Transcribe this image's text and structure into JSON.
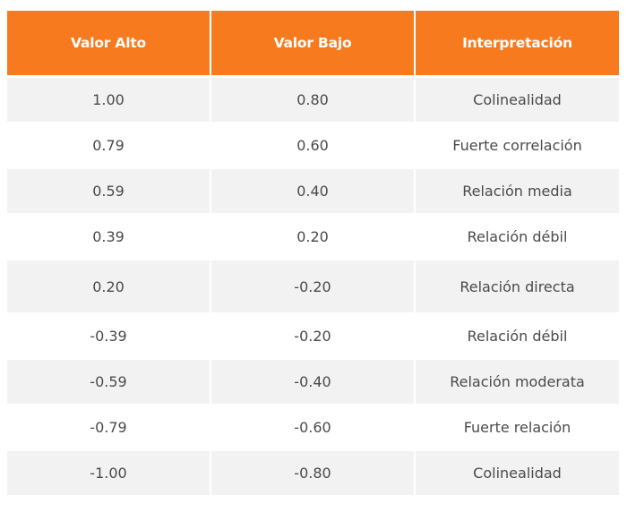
{
  "table": {
    "headers": [
      "Valor Alto",
      "Valor Bajo",
      "Interpretación"
    ],
    "rows": [
      {
        "alto": "1.00",
        "bajo": "0.80",
        "interpretacion": "Colinealidad"
      },
      {
        "alto": "0.79",
        "bajo": "0.60",
        "interpretacion": "Fuerte correlación"
      },
      {
        "alto": "0.59",
        "bajo": "0.40",
        "interpretacion": "Relación media"
      },
      {
        "alto": "0.39",
        "bajo": "0.20",
        "interpretacion": "Relación débil"
      },
      {
        "alto": "0.20",
        "bajo": "-0.20",
        "interpretacion": "Relación directa"
      },
      {
        "alto": "-0.39",
        "bajo": "-0.20",
        "interpretacion": "Relación débil"
      },
      {
        "alto": "-0.59",
        "bajo": "-0.40",
        "interpretacion": "Relación moderata"
      },
      {
        "alto": "-0.79",
        "bajo": "-0.60",
        "interpretacion": "Fuerte relación"
      },
      {
        "alto": "-1.00",
        "bajo": "-0.80",
        "interpretacion": "Colinealidad"
      }
    ]
  },
  "colors": {
    "header_bg": "#f77b1e",
    "header_text": "#ffffff",
    "stripe_bg": "#f2f2f2",
    "body_text": "#4a4a4a"
  }
}
